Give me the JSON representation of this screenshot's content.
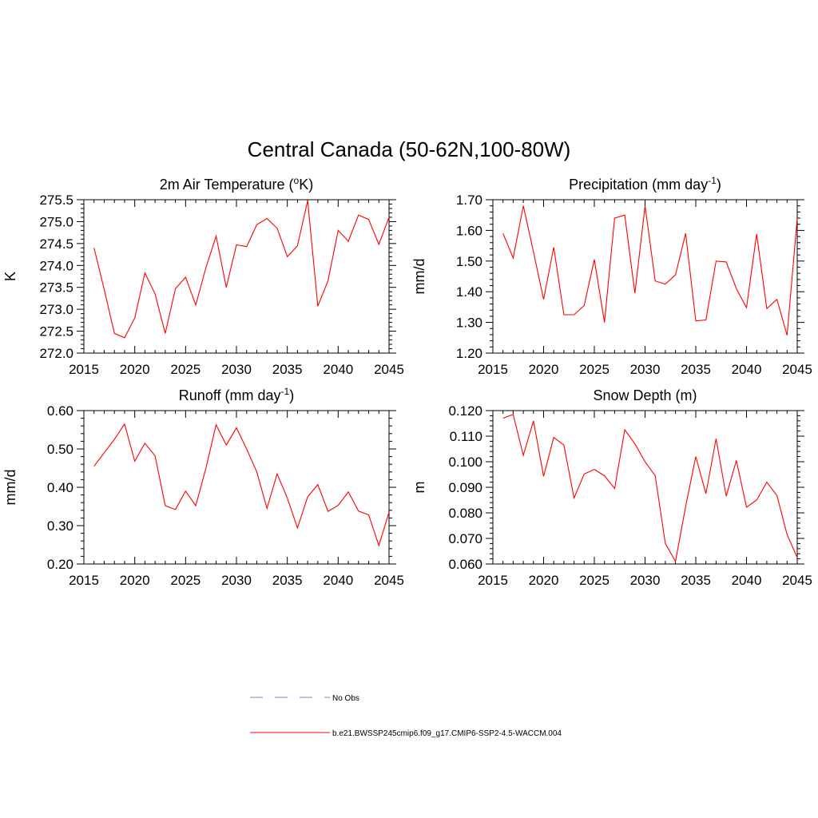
{
  "figure_title": "Central Canada (50-62N,100-80W)",
  "colors": {
    "series": "#ff0000",
    "no_obs": "#9999dd",
    "axis": "#000000"
  },
  "legend": {
    "items": [
      {
        "label": "No Obs",
        "style": "dashed",
        "color": "#9999dd"
      },
      {
        "label": "b.e21.BWSSP245cmip6.f09_g17.CMIP6-SSP2-4.5-WACCM.004",
        "style": "solid",
        "color": "#ff0000"
      }
    ]
  },
  "chart_data": [
    {
      "type": "line",
      "title": "2m Air Temperature (",
      "title_sup": "o",
      "title_after": "K)",
      "xlabel": "",
      "ylabel": "K",
      "xlim": [
        2015,
        2045
      ],
      "ylim": [
        272.0,
        275.5
      ],
      "xticks": [
        "2015",
        "2020",
        "2025",
        "2030",
        "2035",
        "2040",
        "2045"
      ],
      "yticks": [
        "272.0",
        "272.5",
        "273.0",
        "273.5",
        "274.0",
        "274.5",
        "275.0",
        "275.5"
      ],
      "x": [
        2016,
        2017,
        2018,
        2019,
        2020,
        2021,
        2022,
        2023,
        2024,
        2025,
        2026,
        2027,
        2028,
        2029,
        2030,
        2031,
        2032,
        2033,
        2034,
        2035,
        2036,
        2037,
        2038,
        2039,
        2040,
        2041,
        2042,
        2043,
        2044,
        2045
      ],
      "series": [
        {
          "values": [
            274.4,
            273.45,
            272.45,
            272.35,
            272.8,
            273.83,
            273.35,
            272.45,
            273.47,
            273.73,
            273.1,
            273.95,
            274.67,
            273.5,
            274.47,
            274.43,
            274.93,
            275.07,
            274.85,
            274.2,
            274.45,
            275.48,
            273.07,
            273.65,
            274.8,
            274.55,
            275.15,
            275.05,
            274.48,
            275.1
          ]
        }
      ]
    },
    {
      "type": "line",
      "title": "Precipitation (mm day",
      "title_sup": "-1",
      "title_after": ")",
      "xlabel": "",
      "ylabel": "mm/d",
      "xlim": [
        2015,
        2045
      ],
      "ylim": [
        1.2,
        1.7
      ],
      "xticks": [
        "2015",
        "2020",
        "2025",
        "2030",
        "2035",
        "2040",
        "2045"
      ],
      "yticks": [
        "1.20",
        "1.30",
        "1.40",
        "1.50",
        "1.60",
        "1.70"
      ],
      "x": [
        2016,
        2017,
        2018,
        2019,
        2020,
        2021,
        2022,
        2023,
        2024,
        2025,
        2026,
        2027,
        2028,
        2029,
        2030,
        2031,
        2032,
        2033,
        2034,
        2035,
        2036,
        2037,
        2038,
        2039,
        2040,
        2041,
        2042,
        2043,
        2044,
        2045
      ],
      "series": [
        {
          "values": [
            1.59,
            1.51,
            1.68,
            1.53,
            1.375,
            1.545,
            1.325,
            1.325,
            1.355,
            1.505,
            1.3,
            1.64,
            1.65,
            1.395,
            1.68,
            1.435,
            1.425,
            1.455,
            1.59,
            1.305,
            1.308,
            1.5,
            1.497,
            1.41,
            1.348,
            1.588,
            1.345,
            1.375,
            1.258,
            1.64
          ]
        }
      ]
    },
    {
      "type": "line",
      "title": "Runoff (mm day",
      "title_sup": "-1",
      "title_after": ")",
      "xlabel": "",
      "ylabel": "mm/d",
      "xlim": [
        2015,
        2045
      ],
      "ylim": [
        0.2,
        0.6
      ],
      "xticks": [
        "2015",
        "2020",
        "2025",
        "2030",
        "2035",
        "2040",
        "2045"
      ],
      "yticks": [
        "0.20",
        "0.30",
        "0.40",
        "0.50",
        "0.60"
      ],
      "x": [
        2016,
        2017,
        2018,
        2019,
        2020,
        2021,
        2022,
        2023,
        2024,
        2025,
        2026,
        2027,
        2028,
        2029,
        2030,
        2031,
        2032,
        2033,
        2034,
        2035,
        2036,
        2037,
        2038,
        2039,
        2040,
        2041,
        2042,
        2043,
        2044,
        2045
      ],
      "series": [
        {
          "values": [
            0.455,
            0.49,
            0.525,
            0.565,
            0.468,
            0.515,
            0.482,
            0.352,
            0.342,
            0.39,
            0.352,
            0.45,
            0.563,
            0.51,
            0.555,
            0.5,
            0.44,
            0.345,
            0.435,
            0.372,
            0.294,
            0.375,
            0.407,
            0.337,
            0.353,
            0.388,
            0.338,
            0.328,
            0.248,
            0.335
          ]
        }
      ]
    },
    {
      "type": "line",
      "title": "Snow Depth (m)",
      "title_sup": "",
      "title_after": "",
      "xlabel": "",
      "ylabel": "m",
      "xlim": [
        2015,
        2045
      ],
      "ylim": [
        0.06,
        0.12
      ],
      "xticks": [
        "2015",
        "2020",
        "2025",
        "2030",
        "2035",
        "2040",
        "2045"
      ],
      "yticks": [
        "0.060",
        "0.070",
        "0.080",
        "0.090",
        "0.100",
        "0.110",
        "0.120"
      ],
      "x": [
        2016,
        2017,
        2018,
        2019,
        2020,
        2021,
        2022,
        2023,
        2024,
        2025,
        2026,
        2027,
        2028,
        2029,
        2030,
        2031,
        2032,
        2033,
        2034,
        2035,
        2036,
        2037,
        2038,
        2039,
        2040,
        2041,
        2042,
        2043,
        2044,
        2045
      ],
      "series": [
        {
          "values": [
            0.117,
            0.1185,
            0.1025,
            0.116,
            0.0943,
            0.1095,
            0.1065,
            0.0858,
            0.0952,
            0.097,
            0.0945,
            0.0895,
            0.1125,
            0.107,
            0.1,
            0.0945,
            0.068,
            0.061,
            0.0825,
            0.102,
            0.0875,
            0.109,
            0.0865,
            0.1005,
            0.0822,
            0.085,
            0.092,
            0.0868,
            0.0715,
            0.0625
          ]
        }
      ]
    }
  ]
}
